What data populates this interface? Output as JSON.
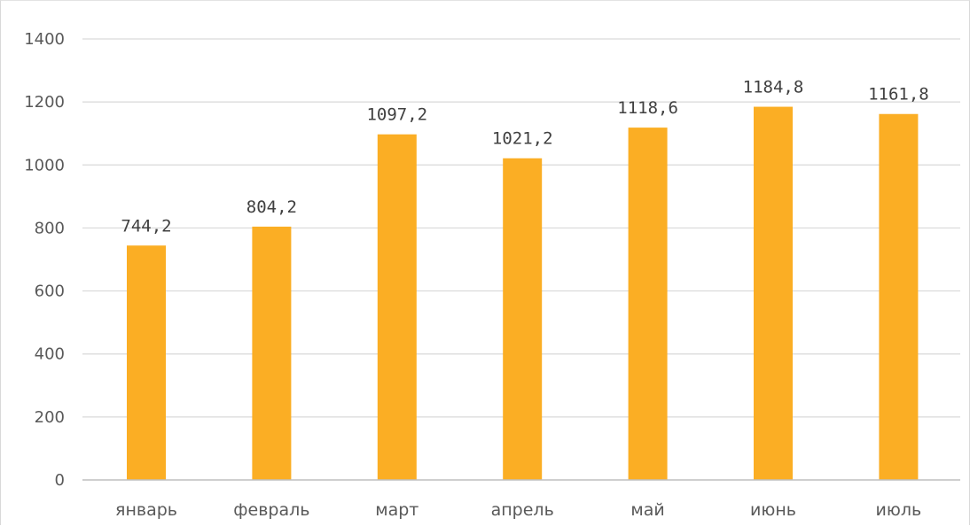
{
  "chart_data": {
    "type": "bar",
    "categories": [
      "январь",
      "февраль",
      "март",
      "апрель",
      "май",
      "июнь",
      "июль"
    ],
    "values": [
      744.2,
      804.2,
      1097.2,
      1021.2,
      1118.6,
      1184.8,
      1161.8
    ],
    "data_labels": [
      "744,2",
      "804,2",
      "1097,2",
      "1021,2",
      "1118,6",
      "1184,8",
      "1161,8"
    ],
    "yticks": [
      0,
      200,
      400,
      600,
      800,
      1000,
      1200,
      1400
    ],
    "ylim": [
      0,
      1400
    ],
    "grid": true,
    "legend": "none",
    "title": "",
    "xlabel": "",
    "ylabel": "",
    "colors": {
      "bar": "#FBAE24",
      "grid": "#D9D9D9",
      "axis": "#BFBFBF",
      "tick_text": "#595959",
      "label_text": "#404040"
    }
  }
}
